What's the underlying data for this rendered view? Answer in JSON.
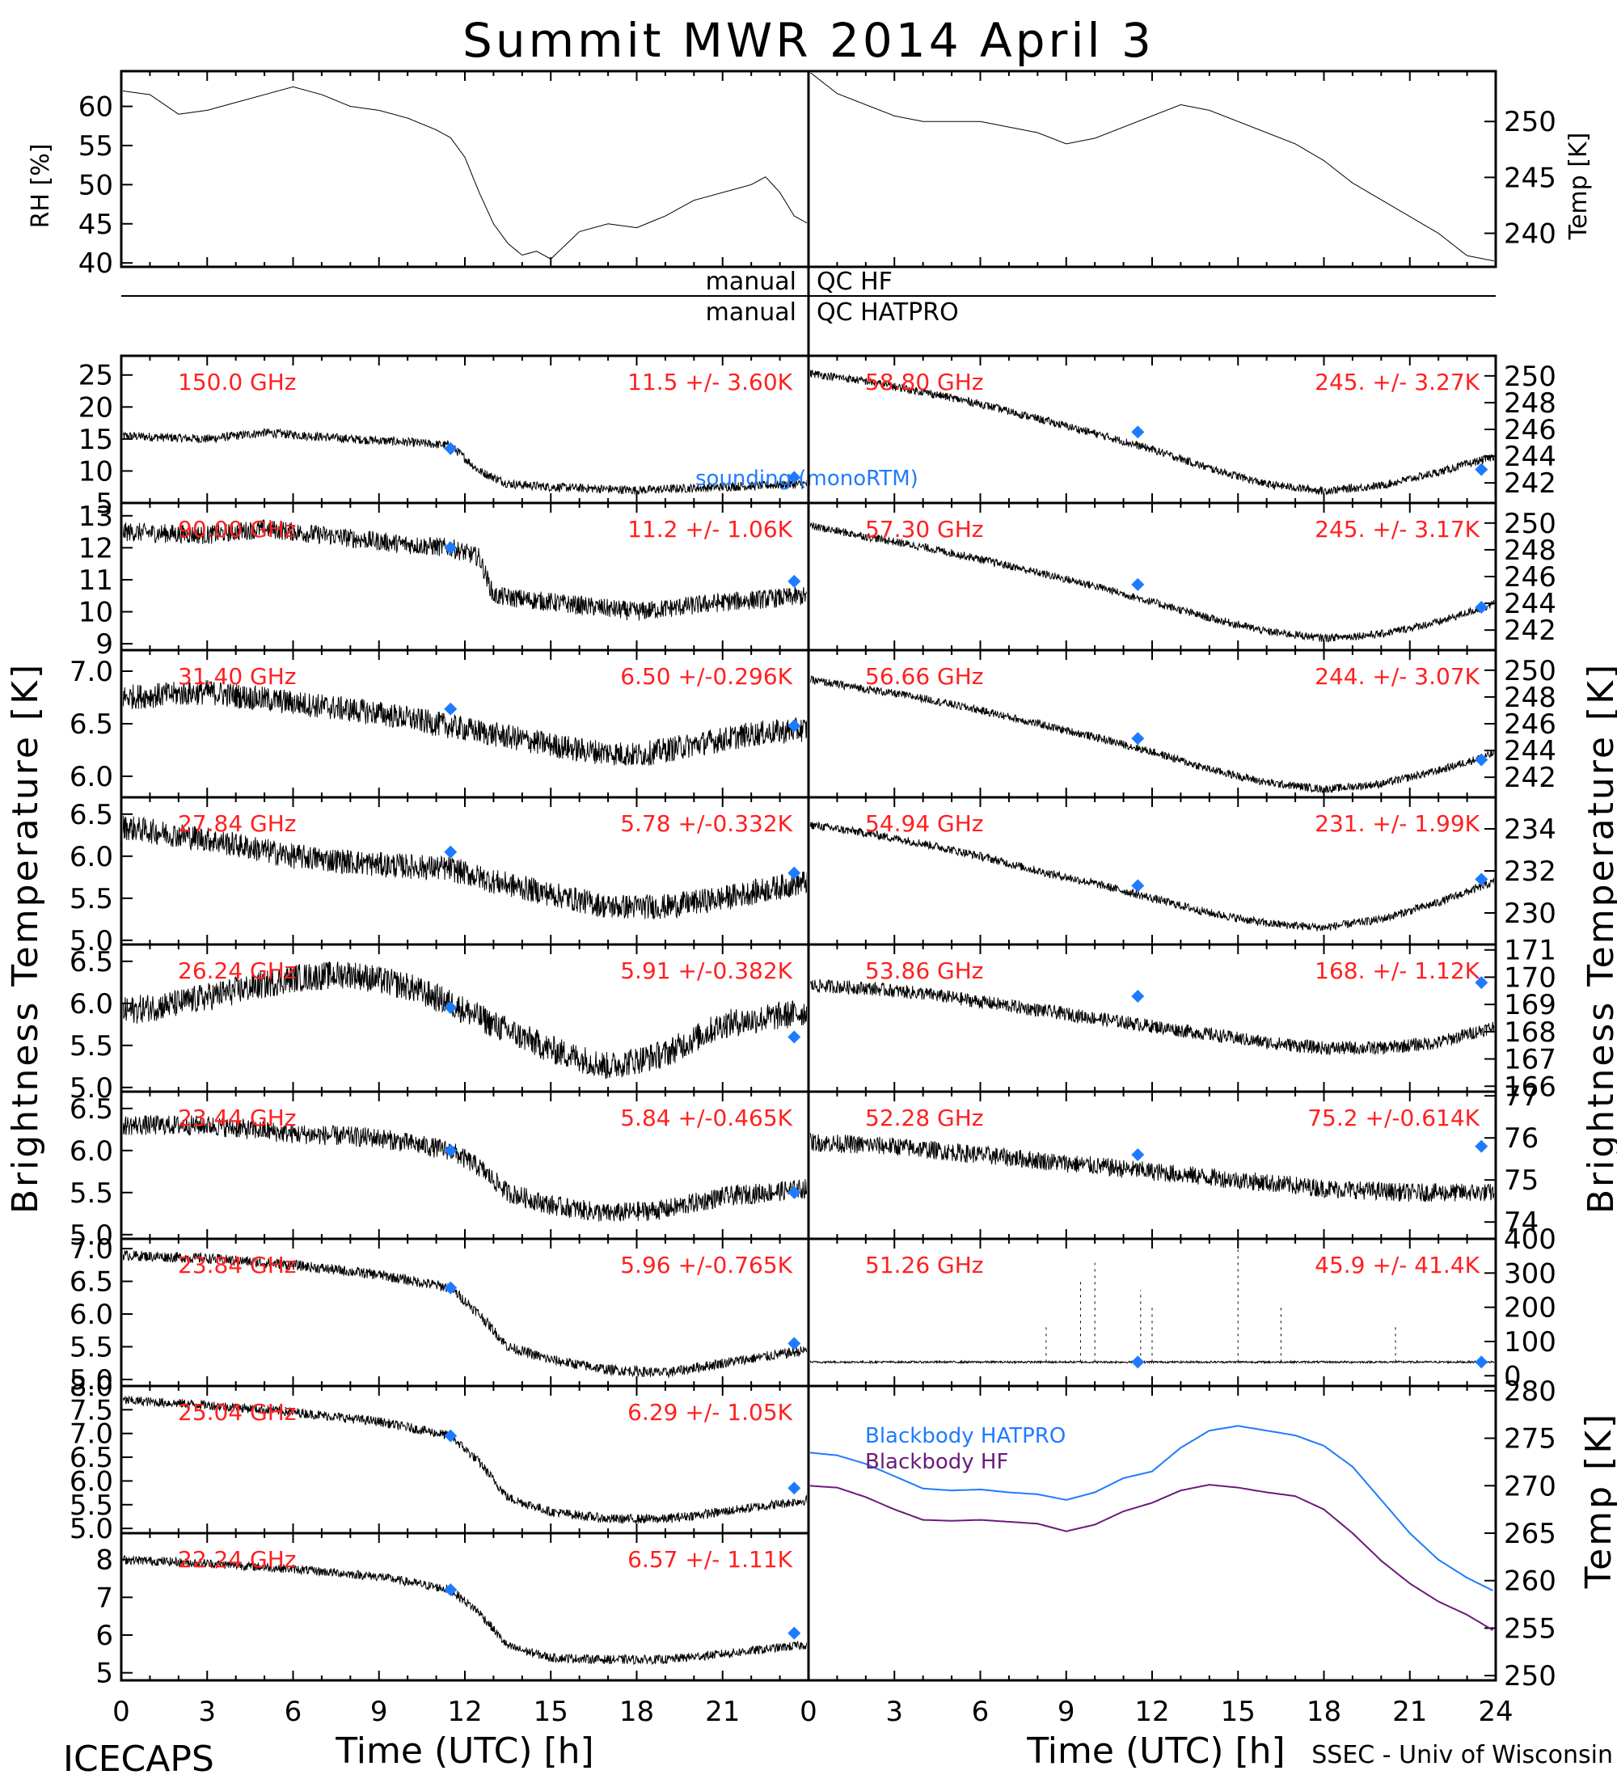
{
  "title": "Summit MWR 2014 April  3",
  "labels": {
    "left_axis": "Brightness Temperature [K]",
    "right_axis": "Brightness Temperature [K]",
    "rh_axis": "RH [%]",
    "temp_axis": "Temp [K]",
    "bb_axis": "Temp [K]",
    "xaxis_left": "Time (UTC) [h]",
    "xaxis_right": "Time (UTC) [h]",
    "footer_left": "ICECAPS",
    "footer_right": "SSEC - Univ of Wisconsin",
    "qc_hf_left": "manual",
    "qc_hf_right": "QC HF",
    "qc_hatpro_left": "manual",
    "qc_hatpro_right": "QC HATPRO",
    "sounding": "sounding (monoRTM)"
  },
  "colors": {
    "data": "#000000",
    "sounding": "#1e7bff",
    "channel_label": "#ff2020",
    "blackbody_hatpro": "#1e7bff",
    "blackbody_hf": "#6a1b7a"
  },
  "chart_data": [
    {
      "type": "line",
      "name": "rh",
      "xlim": [
        0,
        24
      ],
      "ylim": [
        39.5,
        64.5
      ],
      "ylabel": "RH [%]",
      "yticks": [
        40,
        45,
        50,
        55,
        60
      ],
      "x": [
        0,
        1,
        2,
        3,
        4,
        5,
        6,
        7,
        8,
        9,
        10,
        11,
        11.5,
        12,
        12.5,
        13,
        13.5,
        14,
        14.5,
        15,
        16,
        17,
        18,
        19,
        20,
        21,
        22,
        22.5,
        23,
        23.5,
        24
      ],
      "y": [
        62,
        61.5,
        59,
        59.5,
        60.5,
        61.5,
        62.5,
        61.5,
        60,
        59.5,
        58.5,
        57,
        56,
        53.5,
        49,
        45,
        42.5,
        41,
        41.5,
        40.5,
        44,
        45,
        44.5,
        46,
        48,
        49,
        50,
        51,
        49,
        46,
        45
      ]
    },
    {
      "type": "line",
      "name": "temp",
      "xlim": [
        0,
        24
      ],
      "ylim": [
        237,
        254.5
      ],
      "ylabel": "Temp [K]",
      "yticks": [
        240,
        245,
        250
      ],
      "x": [
        0,
        1,
        2,
        3,
        4,
        5,
        6,
        7,
        8,
        9,
        10,
        11,
        12,
        13,
        14,
        15,
        16,
        17,
        18,
        19,
        20,
        21,
        22,
        23,
        24
      ],
      "y": [
        254.5,
        252.5,
        251.5,
        250.5,
        250,
        250,
        250,
        249.5,
        249,
        248,
        248.5,
        249.5,
        250.5,
        251.5,
        251,
        250,
        249,
        248,
        246.5,
        244.5,
        243,
        241.5,
        240,
        238,
        237.5
      ]
    },
    {
      "type": "line",
      "name": "150.0 GHz",
      "label": "150.0 GHz",
      "stats": "11.5 +/-  3.60K",
      "ylim": [
        5,
        28
      ],
      "yticks": [
        5,
        10,
        15,
        20,
        25
      ],
      "x": [
        0,
        3,
        5,
        8,
        10,
        11.5,
        12.5,
        13.5,
        15,
        18,
        21,
        24
      ],
      "y": [
        15.5,
        15,
        16,
        15,
        14.5,
        14,
        10,
        8,
        7.5,
        7,
        7.5,
        8
      ],
      "noise": 0.7,
      "sounding": [
        [
          11.5,
          13.5
        ],
        [
          23.5,
          9
        ]
      ]
    },
    {
      "type": "line",
      "name": "90.00 GHz",
      "label": "90.00 GHz",
      "stats": "11.2 +/-  1.06K",
      "ylim": [
        8.8,
        13.4
      ],
      "yticks": [
        9,
        10,
        11,
        12,
        13
      ],
      "x": [
        0,
        3,
        5,
        8,
        10,
        11.5,
        12.5,
        13,
        15,
        18,
        21,
        24
      ],
      "y": [
        12.5,
        12.4,
        12.6,
        12.3,
        12.1,
        12,
        11.7,
        10.5,
        10.3,
        10,
        10.3,
        10.5
      ],
      "noise": 0.3,
      "sounding": [
        [
          11.5,
          12
        ],
        [
          23.5,
          10.95
        ]
      ]
    },
    {
      "type": "line",
      "name": "31.40 GHz",
      "label": "31.40 GHz",
      "stats": "6.50 +/-0.296K",
      "ylim": [
        5.8,
        7.2
      ],
      "yticks": [
        6.0,
        6.5,
        7.0
      ],
      "x": [
        0,
        3,
        6,
        9,
        12,
        14,
        16,
        18,
        20,
        22,
        24
      ],
      "y": [
        6.75,
        6.8,
        6.7,
        6.6,
        6.45,
        6.35,
        6.25,
        6.2,
        6.3,
        6.4,
        6.45
      ],
      "noise": 0.12,
      "sounding": [
        [
          11.5,
          6.64
        ],
        [
          23.5,
          6.48
        ]
      ]
    },
    {
      "type": "line",
      "name": "27.84 GHz",
      "label": "27.84 GHz",
      "stats": "5.78 +/-0.332K",
      "ylim": [
        4.95,
        6.7
      ],
      "yticks": [
        5.0,
        5.5,
        6.0,
        6.5
      ],
      "x": [
        0,
        3,
        6,
        9,
        11.5,
        13,
        15,
        17,
        19,
        21,
        24
      ],
      "y": [
        6.35,
        6.2,
        6.0,
        5.9,
        5.85,
        5.7,
        5.55,
        5.4,
        5.4,
        5.5,
        5.7
      ],
      "noise": 0.15,
      "sounding": [
        [
          11.5,
          6.05
        ],
        [
          23.5,
          5.8
        ]
      ]
    },
    {
      "type": "line",
      "name": "26.24 GHz",
      "label": "26.24 GHz",
      "stats": "5.91 +/-0.382K",
      "ylim": [
        4.95,
        6.7
      ],
      "yticks": [
        5.0,
        5.5,
        6.0,
        6.5
      ],
      "x": [
        0,
        2,
        4,
        6,
        8,
        10,
        11.5,
        13,
        15,
        17,
        19,
        21,
        24
      ],
      "y": [
        5.9,
        6.0,
        6.15,
        6.3,
        6.35,
        6.2,
        6.0,
        5.75,
        5.45,
        5.25,
        5.4,
        5.75,
        5.9
      ],
      "noise": 0.17,
      "sounding": [
        [
          11.5,
          5.95
        ],
        [
          23.5,
          5.6
        ]
      ]
    },
    {
      "type": "line",
      "name": "23.44 GHz",
      "label": "23.44 GHz",
      "stats": "5.84 +/-0.465K",
      "ylim": [
        4.95,
        6.7
      ],
      "yticks": [
        5.0,
        5.5,
        6.0,
        6.5
      ],
      "x": [
        0,
        3,
        6,
        9,
        11.5,
        12.5,
        13.5,
        15,
        17,
        19,
        21,
        24
      ],
      "y": [
        6.3,
        6.3,
        6.2,
        6.15,
        6.0,
        5.8,
        5.5,
        5.35,
        5.25,
        5.3,
        5.45,
        5.55
      ],
      "noise": 0.12,
      "sounding": [
        [
          11.5,
          6.0
        ],
        [
          23.5,
          5.5
        ]
      ]
    },
    {
      "type": "line",
      "name": "23.84 GHz",
      "label": "23.84 GHz",
      "stats": "5.96 +/-0.765K",
      "ylim": [
        4.9,
        7.15
      ],
      "yticks": [
        5.0,
        5.5,
        6.0,
        6.5,
        7.0
      ],
      "x": [
        0,
        3,
        6,
        9,
        11.5,
        12.5,
        13.5,
        15,
        17,
        19,
        21,
        24
      ],
      "y": [
        6.9,
        6.85,
        6.75,
        6.6,
        6.4,
        6.0,
        5.5,
        5.3,
        5.15,
        5.1,
        5.25,
        5.45
      ],
      "noise": 0.08,
      "sounding": [
        [
          11.5,
          6.4
        ],
        [
          23.5,
          5.55
        ]
      ]
    },
    {
      "type": "line",
      "name": "25.04 GHz",
      "label": "25.04 GHz",
      "stats": "6.29 +/-  1.05K",
      "ylim": [
        4.9,
        8.0
      ],
      "yticks": [
        5.0,
        5.5,
        6.0,
        6.5,
        7.0,
        7.5,
        8.0
      ],
      "x": [
        0,
        3,
        6,
        9,
        11.5,
        12.5,
        13.5,
        15,
        17,
        19,
        21,
        24
      ],
      "y": [
        7.7,
        7.6,
        7.45,
        7.25,
        6.95,
        6.4,
        5.65,
        5.35,
        5.2,
        5.2,
        5.35,
        5.6
      ],
      "noise": 0.1,
      "sounding": [
        [
          11.5,
          6.95
        ],
        [
          23.5,
          5.85
        ]
      ]
    },
    {
      "type": "line",
      "name": "22.24 GHz",
      "label": "22.24 GHz",
      "stats": "6.57 +/-  1.11K",
      "ylim": [
        4.8,
        8.7
      ],
      "yticks": [
        5,
        6,
        7,
        8
      ],
      "x": [
        0,
        3,
        6,
        9,
        11.5,
        12.5,
        13.5,
        15,
        17,
        19,
        21,
        24
      ],
      "y": [
        8.0,
        7.9,
        7.75,
        7.55,
        7.2,
        6.6,
        5.7,
        5.4,
        5.35,
        5.35,
        5.5,
        5.75
      ],
      "noise": 0.12,
      "sounding": [
        [
          11.5,
          7.2
        ],
        [
          23.5,
          6.05
        ]
      ]
    },
    {
      "type": "line",
      "name": "58.80 GHz",
      "label": "58.80 GHz",
      "stats": "245. +/- 3.27K",
      "ylim": [
        240.5,
        251.5
      ],
      "yticks": [
        242,
        244,
        246,
        248,
        250
      ],
      "x": [
        0,
        2,
        4,
        6,
        8,
        10,
        12,
        14,
        16,
        18,
        20,
        22,
        24
      ],
      "y": [
        250.2,
        249.6,
        248.8,
        247.9,
        246.8,
        245.7,
        244.5,
        243.1,
        241.9,
        241.4,
        241.8,
        242.8,
        244.0
      ],
      "noise": 0.3,
      "sounding": [
        [
          11.5,
          245.8
        ],
        [
          23.5,
          243.0
        ]
      ]
    },
    {
      "type": "line",
      "name": "57.30 GHz",
      "label": "57.30 GHz",
      "stats": "245. +/- 3.17K",
      "ylim": [
        240.5,
        251.5
      ],
      "yticks": [
        242,
        244,
        246,
        248,
        250
      ],
      "x": [
        0,
        2,
        4,
        6,
        8,
        10,
        12,
        14,
        16,
        18,
        20,
        22,
        24
      ],
      "y": [
        249.8,
        249.0,
        248.2,
        247.3,
        246.3,
        245.3,
        244.1,
        242.9,
        241.9,
        241.4,
        241.7,
        242.6,
        244.0
      ],
      "noise": 0.3,
      "sounding": [
        [
          11.5,
          245.4
        ],
        [
          23.5,
          243.7
        ]
      ]
    },
    {
      "type": "line",
      "name": "56.66 GHz",
      "label": "56.66 GHz",
      "stats": "244. +/- 3.07K",
      "ylim": [
        240.5,
        251.5
      ],
      "yticks": [
        242,
        244,
        246,
        248,
        250
      ],
      "x": [
        0,
        2,
        4,
        6,
        8,
        10,
        12,
        14,
        16,
        18,
        20,
        22,
        24
      ],
      "y": [
        249.3,
        248.6,
        247.9,
        247.0,
        246.0,
        245.0,
        243.9,
        242.6,
        241.6,
        241.1,
        241.5,
        242.5,
        243.8
      ],
      "noise": 0.3,
      "sounding": [
        [
          11.5,
          244.9
        ],
        [
          23.5,
          243.3
        ]
      ]
    },
    {
      "type": "line",
      "name": "54.94 GHz",
      "label": "54.94 GHz",
      "stats": "231. +/- 1.99K",
      "ylim": [
        228.5,
        235.5
      ],
      "yticks": [
        230,
        232,
        234
      ],
      "x": [
        0,
        2,
        4,
        6,
        8,
        10,
        12,
        14,
        16,
        18,
        20,
        22,
        24
      ],
      "y": [
        234.2,
        233.8,
        233.3,
        232.7,
        232.0,
        231.4,
        230.7,
        230.0,
        229.5,
        229.3,
        229.7,
        230.5,
        231.5
      ],
      "noise": 0.2,
      "sounding": [
        [
          11.5,
          231.3
        ],
        [
          23.5,
          231.6
        ]
      ]
    },
    {
      "type": "line",
      "name": "53.86 GHz",
      "label": "53.86 GHz",
      "stats": "168. +/- 1.12K",
      "ylim": [
        165.8,
        171.2
      ],
      "yticks": [
        166,
        167,
        168,
        169,
        170,
        171
      ],
      "x": [
        0,
        2,
        4,
        6,
        8,
        10,
        12,
        14,
        16,
        18,
        20,
        22,
        24
      ],
      "y": [
        169.7,
        169.6,
        169.4,
        169.1,
        168.8,
        168.5,
        168.2,
        167.9,
        167.6,
        167.4,
        167.4,
        167.6,
        168.2
      ],
      "noise": 0.25,
      "sounding": [
        [
          11.5,
          169.3
        ],
        [
          23.5,
          169.8
        ]
      ]
    },
    {
      "type": "line",
      "name": "52.28 GHz",
      "label": "52.28 GHz",
      "stats": "75.2 +/-0.614K",
      "ylim": [
        73.6,
        77.1
      ],
      "yticks": [
        74,
        75,
        76,
        77
      ],
      "x": [
        0,
        3,
        6,
        9,
        12,
        15,
        18,
        21,
        24
      ],
      "y": [
        75.9,
        75.8,
        75.6,
        75.4,
        75.2,
        75.0,
        74.8,
        74.7,
        74.7
      ],
      "noise": 0.22,
      "sounding": [
        [
          11.5,
          75.6
        ],
        [
          23.5,
          75.8
        ]
      ]
    },
    {
      "type": "line",
      "name": "51.26 GHz",
      "label": "51.26 GHz",
      "stats": "45.9 +/- 41.4K",
      "ylim": [
        -30,
        400
      ],
      "yticks": [
        0,
        100,
        200,
        300,
        400
      ],
      "x": [
        0,
        24
      ],
      "y": [
        40,
        40
      ],
      "noise": 3,
      "sounding": [
        [
          11.5,
          40
        ],
        [
          23.5,
          40
        ]
      ]
    },
    {
      "type": "line",
      "name": "blackbody",
      "ylim": [
        249.5,
        280.5
      ],
      "yticks": [
        250,
        255,
        260,
        265,
        270,
        275,
        280
      ],
      "ylabel": "Temp [K]",
      "series": [
        {
          "name": "Blackbody HATPRO",
          "x": [
            0,
            1,
            2,
            3,
            4,
            5,
            6,
            7,
            8,
            9,
            10,
            11,
            12,
            13,
            14,
            15,
            16,
            17,
            18,
            19,
            20,
            21,
            22,
            23,
            24
          ],
          "y": [
            273.5,
            273.2,
            272.3,
            271,
            269.7,
            269.5,
            269.6,
            269.3,
            269.1,
            268.5,
            269.3,
            270.8,
            271.5,
            274,
            275.8,
            276.3,
            275.8,
            275.3,
            274.2,
            272,
            268.5,
            265,
            262.2,
            260.3,
            258.8
          ]
        },
        {
          "name": "Blackbody HF",
          "x": [
            0,
            1,
            2,
            3,
            4,
            5,
            6,
            7,
            8,
            9,
            10,
            11,
            12,
            13,
            14,
            15,
            16,
            17,
            18,
            19,
            20,
            21,
            22,
            23,
            24
          ],
          "y": [
            270,
            269.8,
            268.8,
            267.5,
            266.4,
            266.3,
            266.4,
            266.2,
            266,
            265.2,
            265.9,
            267.3,
            268.2,
            269.5,
            270.1,
            269.8,
            269.3,
            268.9,
            267.5,
            265,
            262.1,
            259.7,
            257.8,
            256.4,
            254.6
          ]
        }
      ]
    }
  ]
}
